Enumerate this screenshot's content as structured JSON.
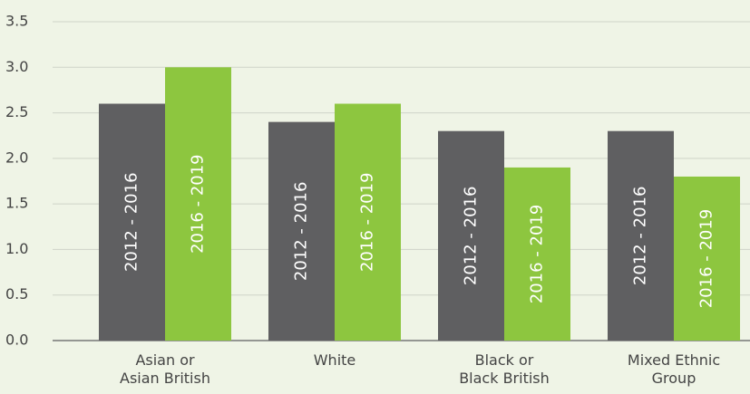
{
  "chart_data": {
    "type": "bar",
    "categories": [
      "Asian or\nAsian British",
      "White",
      "Black or\nBlack British",
      "Mixed Ethnic\nGroup"
    ],
    "series": [
      {
        "name": "2012 - 2016",
        "color": "#5f5f61",
        "values": [
          2.6,
          2.4,
          2.3,
          2.3
        ]
      },
      {
        "name": "2016 - 2019",
        "color": "#8dc63f",
        "values": [
          3.0,
          2.6,
          1.9,
          1.8
        ]
      }
    ],
    "ylim": [
      0,
      3.5
    ],
    "yticks": [
      {
        "value": 0,
        "label": "0.0"
      },
      0.5,
      {
        "value": 1,
        "label": "1.0"
      },
      1.5,
      {
        "value": 2,
        "label": "2.0"
      },
      2.5,
      {
        "value": 3,
        "label": "3.0"
      },
      3.5
    ],
    "grid": true
  }
}
